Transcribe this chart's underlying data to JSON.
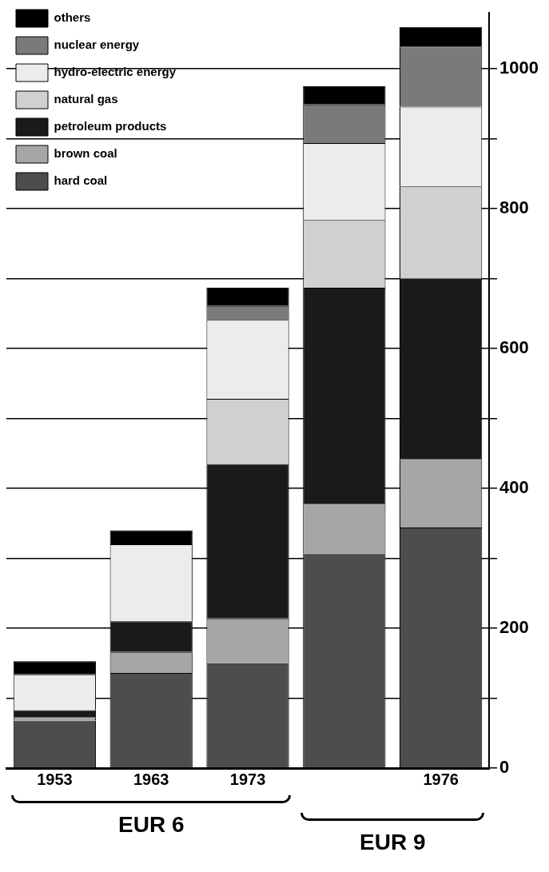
{
  "chart_data": {
    "type": "bar",
    "stacked": true,
    "categories": [
      "1953",
      "1963",
      "1973",
      null,
      "1976"
    ],
    "series": [
      {
        "name": "hard coal",
        "color": "#4d4d4d",
        "values": [
          68,
          136,
          150,
          307,
          344
        ]
      },
      {
        "name": "brown coal",
        "color": "#a6a6a6",
        "values": [
          5,
          30,
          64,
          71,
          98
        ]
      },
      {
        "name": "petroleum products",
        "color": "#1a1a1a",
        "values": [
          10,
          44,
          221,
          309,
          258
        ]
      },
      {
        "name": "natural gas",
        "color": "#d0d0d0",
        "values": [
          0,
          0,
          93,
          97,
          132
        ]
      },
      {
        "name": "hydro-electric energy",
        "color": "#ececec",
        "values": [
          51,
          110,
          113,
          110,
          114
        ]
      },
      {
        "name": "nuclear energy",
        "color": "#7a7a7a",
        "values": [
          0,
          0,
          20,
          55,
          86
        ]
      },
      {
        "name": "others",
        "color": "#000000",
        "values": [
          19,
          20,
          26,
          26,
          28
        ]
      }
    ],
    "ylim": [
      0,
      1080
    ],
    "yticks": [
      0,
      {
        "value": 100,
        "label": null
      },
      200,
      {
        "value": 300,
        "label": null
      },
      400,
      {
        "value": 500,
        "label": null
      },
      600,
      {
        "value": 700,
        "label": null
      },
      800,
      {
        "value": 900,
        "label": null
      },
      1000
    ],
    "grid": "y",
    "legend": "top left",
    "annotations": [
      "EUR 6",
      "EUR 9"
    ]
  }
}
